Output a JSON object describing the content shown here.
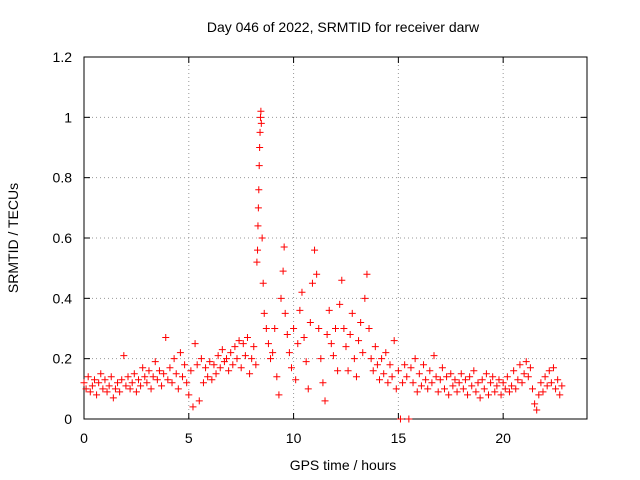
{
  "chart_data": {
    "type": "scatter",
    "title": "Day 046 of 2022, SRMTID for receiver darw",
    "xlabel": "GPS time / hours",
    "ylabel": "SRMTID / TECUs",
    "xlim": [
      0,
      24
    ],
    "ylim": [
      0,
      1.2
    ],
    "xticks": [
      0,
      5,
      10,
      15,
      20
    ],
    "yticks": [
      0,
      0.2,
      0.4,
      0.6,
      0.8,
      1,
      1.2
    ],
    "xtick_labels": [
      "0",
      "5",
      "10",
      "15",
      "20"
    ],
    "ytick_labels": [
      "0",
      "0.2",
      "0.4",
      "0.6",
      "0.8",
      "1",
      "1.2"
    ],
    "grid": true,
    "marker": "+",
    "color": "#ff0000",
    "series": [
      {
        "name": "SRMTID",
        "points": [
          [
            0.0,
            0.12
          ],
          [
            0.1,
            0.1
          ],
          [
            0.2,
            0.14
          ],
          [
            0.3,
            0.09
          ],
          [
            0.4,
            0.11
          ],
          [
            0.5,
            0.13
          ],
          [
            0.6,
            0.08
          ],
          [
            0.7,
            0.12
          ],
          [
            0.8,
            0.15
          ],
          [
            0.9,
            0.1
          ],
          [
            1.0,
            0.13
          ],
          [
            1.1,
            0.09
          ],
          [
            1.2,
            0.11
          ],
          [
            1.3,
            0.14
          ],
          [
            1.4,
            0.07
          ],
          [
            1.5,
            0.1
          ],
          [
            1.6,
            0.12
          ],
          [
            1.7,
            0.09
          ],
          [
            1.8,
            0.13
          ],
          [
            1.9,
            0.21
          ],
          [
            2.0,
            0.11
          ],
          [
            2.1,
            0.14
          ],
          [
            2.2,
            0.1
          ],
          [
            2.3,
            0.12
          ],
          [
            2.4,
            0.15
          ],
          [
            2.5,
            0.09
          ],
          [
            2.6,
            0.13
          ],
          [
            2.7,
            0.11
          ],
          [
            2.8,
            0.17
          ],
          [
            2.9,
            0.14
          ],
          [
            3.0,
            0.12
          ],
          [
            3.1,
            0.16
          ],
          [
            3.2,
            0.1
          ],
          [
            3.3,
            0.14
          ],
          [
            3.4,
            0.19
          ],
          [
            3.5,
            0.13
          ],
          [
            3.6,
            0.16
          ],
          [
            3.7,
            0.11
          ],
          [
            3.8,
            0.15
          ],
          [
            3.9,
            0.27
          ],
          [
            4.0,
            0.13
          ],
          [
            4.1,
            0.17
          ],
          [
            4.2,
            0.12
          ],
          [
            4.3,
            0.2
          ],
          [
            4.4,
            0.15
          ],
          [
            4.5,
            0.1
          ],
          [
            4.6,
            0.22
          ],
          [
            4.7,
            0.14
          ],
          [
            4.8,
            0.18
          ],
          [
            4.9,
            0.12
          ],
          [
            5.0,
            0.08
          ],
          [
            5.1,
            0.16
          ],
          [
            5.2,
            0.04
          ],
          [
            5.3,
            0.25
          ],
          [
            5.4,
            0.18
          ],
          [
            5.5,
            0.06
          ],
          [
            5.6,
            0.2
          ],
          [
            5.7,
            0.12
          ],
          [
            5.8,
            0.17
          ],
          [
            5.9,
            0.14
          ],
          [
            6.0,
            0.19
          ],
          [
            6.1,
            0.13
          ],
          [
            6.2,
            0.18
          ],
          [
            6.3,
            0.15
          ],
          [
            6.4,
            0.21
          ],
          [
            6.5,
            0.17
          ],
          [
            6.6,
            0.23
          ],
          [
            6.7,
            0.19
          ],
          [
            6.8,
            0.2
          ],
          [
            6.9,
            0.16
          ],
          [
            7.0,
            0.22
          ],
          [
            7.1,
            0.18
          ],
          [
            7.2,
            0.24
          ],
          [
            7.3,
            0.2
          ],
          [
            7.4,
            0.26
          ],
          [
            7.5,
            0.17
          ],
          [
            7.6,
            0.25
          ],
          [
            7.7,
            0.21
          ],
          [
            7.8,
            0.27
          ],
          [
            7.9,
            0.15
          ],
          [
            8.0,
            0.2
          ],
          [
            8.1,
            0.24
          ],
          [
            8.2,
            0.18
          ],
          [
            8.25,
            0.52
          ],
          [
            8.28,
            0.56
          ],
          [
            8.3,
            0.64
          ],
          [
            8.32,
            0.7
          ],
          [
            8.34,
            0.76
          ],
          [
            8.36,
            0.84
          ],
          [
            8.38,
            0.9
          ],
          [
            8.4,
            0.95
          ],
          [
            8.42,
            1.0
          ],
          [
            8.44,
            1.02
          ],
          [
            8.46,
            0.98
          ],
          [
            8.5,
            0.6
          ],
          [
            8.55,
            0.45
          ],
          [
            8.6,
            0.35
          ],
          [
            8.7,
            0.3
          ],
          [
            8.8,
            0.25
          ],
          [
            8.9,
            0.2
          ],
          [
            9.0,
            0.22
          ],
          [
            9.1,
            0.3
          ],
          [
            9.2,
            0.14
          ],
          [
            9.3,
            0.08
          ],
          [
            9.4,
            0.4
          ],
          [
            9.5,
            0.49
          ],
          [
            9.55,
            0.57
          ],
          [
            9.6,
            0.35
          ],
          [
            9.7,
            0.28
          ],
          [
            9.8,
            0.22
          ],
          [
            9.9,
            0.17
          ],
          [
            10.0,
            0.3
          ],
          [
            10.1,
            0.13
          ],
          [
            10.2,
            0.25
          ],
          [
            10.3,
            0.36
          ],
          [
            10.4,
            0.42
          ],
          [
            10.5,
            0.27
          ],
          [
            10.6,
            0.19
          ],
          [
            10.7,
            0.1
          ],
          [
            10.8,
            0.32
          ],
          [
            10.9,
            0.45
          ],
          [
            11.0,
            0.56
          ],
          [
            11.1,
            0.48
          ],
          [
            11.2,
            0.3
          ],
          [
            11.3,
            0.2
          ],
          [
            11.4,
            0.12
          ],
          [
            11.5,
            0.06
          ],
          [
            11.6,
            0.28
          ],
          [
            11.7,
            0.36
          ],
          [
            11.8,
            0.25
          ],
          [
            11.9,
            0.21
          ],
          [
            12.0,
            0.3
          ],
          [
            12.1,
            0.16
          ],
          [
            12.2,
            0.38
          ],
          [
            12.3,
            0.46
          ],
          [
            12.4,
            0.3
          ],
          [
            12.5,
            0.24
          ],
          [
            12.6,
            0.16
          ],
          [
            12.7,
            0.28
          ],
          [
            12.8,
            0.35
          ],
          [
            12.9,
            0.2
          ],
          [
            13.0,
            0.14
          ],
          [
            13.1,
            0.26
          ],
          [
            13.2,
            0.32
          ],
          [
            13.3,
            0.22
          ],
          [
            13.4,
            0.4
          ],
          [
            13.5,
            0.48
          ],
          [
            13.6,
            0.3
          ],
          [
            13.7,
            0.2
          ],
          [
            13.8,
            0.16
          ],
          [
            13.9,
            0.24
          ],
          [
            14.0,
            0.18
          ],
          [
            14.1,
            0.13
          ],
          [
            14.2,
            0.2
          ],
          [
            14.3,
            0.15
          ],
          [
            14.4,
            0.22
          ],
          [
            14.5,
            0.12
          ],
          [
            14.6,
            0.18
          ],
          [
            14.7,
            0.14
          ],
          [
            14.8,
            0.26
          ],
          [
            14.9,
            0.1
          ],
          [
            15.0,
            0.16
          ],
          [
            15.1,
            0.0
          ],
          [
            15.2,
            0.12
          ],
          [
            15.3,
            0.18
          ],
          [
            15.4,
            0.14
          ],
          [
            15.5,
            0.0
          ],
          [
            15.6,
            0.17
          ],
          [
            15.7,
            0.12
          ],
          [
            15.8,
            0.2
          ],
          [
            15.9,
            0.09
          ],
          [
            16.0,
            0.15
          ],
          [
            16.1,
            0.11
          ],
          [
            16.2,
            0.18
          ],
          [
            16.3,
            0.13
          ],
          [
            16.4,
            0.1
          ],
          [
            16.5,
            0.16
          ],
          [
            16.6,
            0.12
          ],
          [
            16.7,
            0.21
          ],
          [
            16.8,
            0.14
          ],
          [
            16.9,
            0.09
          ],
          [
            17.0,
            0.13
          ],
          [
            17.1,
            0.17
          ],
          [
            17.2,
            0.1
          ],
          [
            17.3,
            0.14
          ],
          [
            17.4,
            0.08
          ],
          [
            17.5,
            0.15
          ],
          [
            17.6,
            0.11
          ],
          [
            17.7,
            0.13
          ],
          [
            17.8,
            0.09
          ],
          [
            17.9,
            0.12
          ],
          [
            18.0,
            0.15
          ],
          [
            18.1,
            0.1
          ],
          [
            18.2,
            0.13
          ],
          [
            18.3,
            0.08
          ],
          [
            18.4,
            0.14
          ],
          [
            18.5,
            0.11
          ],
          [
            18.6,
            0.16
          ],
          [
            18.7,
            0.09
          ],
          [
            18.8,
            0.12
          ],
          [
            18.9,
            0.07
          ],
          [
            19.0,
            0.13
          ],
          [
            19.1,
            0.1
          ],
          [
            19.2,
            0.15
          ],
          [
            19.3,
            0.08
          ],
          [
            19.4,
            0.12
          ],
          [
            19.5,
            0.14
          ],
          [
            19.6,
            0.09
          ],
          [
            19.7,
            0.11
          ],
          [
            19.8,
            0.13
          ],
          [
            19.9,
            0.08
          ],
          [
            20.0,
            0.12
          ],
          [
            20.1,
            0.1
          ],
          [
            20.2,
            0.14
          ],
          [
            20.3,
            0.09
          ],
          [
            20.4,
            0.11
          ],
          [
            20.5,
            0.16
          ],
          [
            20.6,
            0.1
          ],
          [
            20.7,
            0.13
          ],
          [
            20.8,
            0.18
          ],
          [
            20.9,
            0.12
          ],
          [
            21.0,
            0.15
          ],
          [
            21.1,
            0.19
          ],
          [
            21.2,
            0.14
          ],
          [
            21.3,
            0.17
          ],
          [
            21.4,
            0.1
          ],
          [
            21.5,
            0.05
          ],
          [
            21.6,
            0.03
          ],
          [
            21.7,
            0.08
          ],
          [
            21.8,
            0.12
          ],
          [
            21.9,
            0.09
          ],
          [
            22.0,
            0.14
          ],
          [
            22.1,
            0.11
          ],
          [
            22.2,
            0.16
          ],
          [
            22.3,
            0.12
          ],
          [
            22.4,
            0.17
          ],
          [
            22.5,
            0.1
          ],
          [
            22.6,
            0.13
          ],
          [
            22.7,
            0.08
          ],
          [
            22.8,
            0.11
          ]
        ]
      }
    ]
  }
}
